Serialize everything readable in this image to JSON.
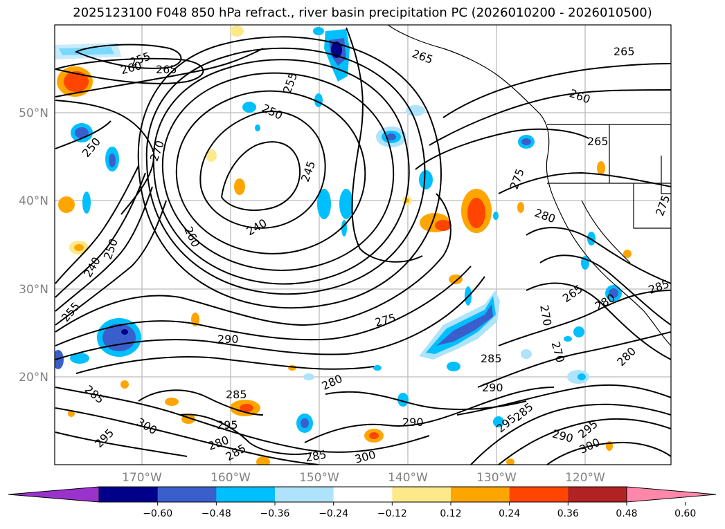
{
  "title": "2025123100 F048 850 hPa refract., river basin precipitation PC (2026010200 - 2026010500)",
  "lat_labels": [
    "50°N",
    "40°N",
    "30°N",
    "20°N"
  ],
  "lon_labels": [
    "170°W",
    "160°W",
    "150°W",
    "140°W",
    "130°W",
    "120°W"
  ],
  "colorbar": {
    "ticks": [
      "−0.60",
      "−0.48",
      "−0.36",
      "−0.24",
      "−0.12",
      "0.12",
      "0.24",
      "0.36",
      "0.48",
      "0.60"
    ],
    "colors": [
      "#9933cc",
      "#00008b",
      "#3a5fcd",
      "#00bfff",
      "#aee3fb",
      "#ffffff",
      "#fce98a",
      "#ffa500",
      "#ff4500",
      "#b22222",
      "#ff88aa"
    ]
  },
  "contour_labels": [
    {
      "text": "255",
      "name": "label-255-a"
    },
    {
      "text": "260",
      "name": "label-260-a"
    },
    {
      "text": "265",
      "name": "label-265-a"
    },
    {
      "text": "255",
      "name": "label-255-b"
    },
    {
      "text": "250",
      "name": "label-250-a"
    },
    {
      "text": "265",
      "name": "label-265-b"
    },
    {
      "text": "265",
      "name": "label-265-c"
    },
    {
      "text": "260",
      "name": "label-260-b"
    },
    {
      "text": "265",
      "name": "label-265-d"
    },
    {
      "text": "250",
      "name": "label-250-b"
    },
    {
      "text": "270",
      "name": "label-270-a"
    },
    {
      "text": "245",
      "name": "label-245"
    },
    {
      "text": "240",
      "name": "label-240"
    },
    {
      "text": "260",
      "name": "label-260-c"
    },
    {
      "text": "275",
      "name": "label-275-a"
    },
    {
      "text": "280",
      "name": "label-280-a"
    },
    {
      "text": "275",
      "name": "label-275-b"
    },
    {
      "text": "250",
      "name": "label-250-c"
    },
    {
      "text": "240",
      "name": "label-240-b"
    },
    {
      "text": "255",
      "name": "label-255-c"
    },
    {
      "text": "275",
      "name": "label-275-c"
    },
    {
      "text": "265",
      "name": "label-265-e"
    },
    {
      "text": "280",
      "name": "label-280-b"
    },
    {
      "text": "285",
      "name": "label-285-a"
    },
    {
      "text": "270",
      "name": "label-270-b"
    },
    {
      "text": "290",
      "name": "label-290-a"
    },
    {
      "text": "285",
      "name": "label-285-b"
    },
    {
      "text": "270",
      "name": "label-270-c"
    },
    {
      "text": "280",
      "name": "label-280-c"
    },
    {
      "text": "280",
      "name": "label-280-d"
    },
    {
      "text": "285",
      "name": "label-285-c"
    },
    {
      "text": "285",
      "name": "label-285-d"
    },
    {
      "text": "295",
      "name": "label-295-a"
    },
    {
      "text": "300",
      "name": "label-300-a"
    },
    {
      "text": "295",
      "name": "label-295-b"
    },
    {
      "text": "280",
      "name": "label-280-e"
    },
    {
      "text": "285",
      "name": "label-285-e"
    },
    {
      "text": "285",
      "name": "label-285-f"
    },
    {
      "text": "300",
      "name": "label-300-b"
    },
    {
      "text": "290",
      "name": "label-290-b"
    },
    {
      "text": "295",
      "name": "label-295-c"
    },
    {
      "text": "290",
      "name": "label-290-c"
    },
    {
      "text": "295",
      "name": "label-295-d"
    },
    {
      "text": "300",
      "name": "label-300-c"
    },
    {
      "text": "285",
      "name": "label-285-g"
    },
    {
      "text": "290",
      "name": "label-290-d"
    }
  ]
}
